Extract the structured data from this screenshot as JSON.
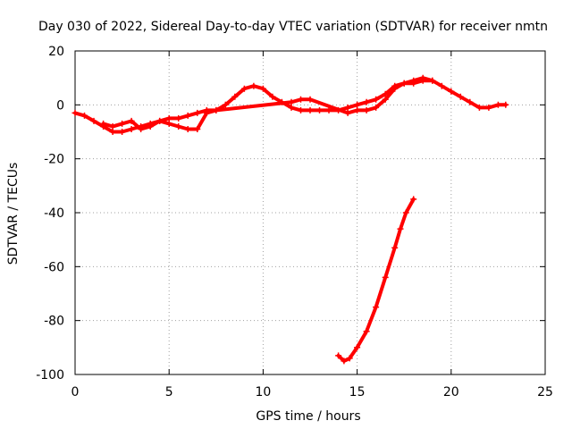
{
  "chart_data": {
    "type": "scatter",
    "title": "Day 030 of 2022, Sidereal Day-to-day VTEC variation (SDTVAR) for receiver nmtn",
    "xlabel": "GPS time / hours",
    "ylabel": "SDTVAR / TECUs",
    "xlim": [
      0,
      25
    ],
    "ylim": [
      -100,
      20
    ],
    "xticks": [
      0,
      5,
      10,
      15,
      20,
      25
    ],
    "yticks": [
      -100,
      -80,
      -60,
      -40,
      -20,
      0,
      20
    ],
    "xtick_labels": [
      "0",
      "5",
      "10",
      "15",
      "20",
      "25"
    ],
    "ytick_labels": [
      "-100",
      "-80",
      "-60",
      "-40",
      "-20",
      "0",
      "20"
    ],
    "grid": true,
    "marker": "plus",
    "color": "#ff0000",
    "series": [
      {
        "name": "main-track",
        "points": [
          [
            0.0,
            -3
          ],
          [
            0.5,
            -4
          ],
          [
            1.0,
            -6
          ],
          [
            1.5,
            -8
          ],
          [
            2.0,
            -10
          ],
          [
            2.5,
            -10
          ],
          [
            3.0,
            -9
          ],
          [
            3.5,
            -8
          ],
          [
            4.0,
            -7
          ],
          [
            4.5,
            -6
          ],
          [
            5.0,
            -5
          ],
          [
            5.5,
            -5
          ],
          [
            6.0,
            -4
          ],
          [
            6.5,
            -3
          ],
          [
            7.0,
            -2
          ],
          [
            7.5,
            -2
          ],
          [
            8.0,
            0
          ],
          [
            8.5,
            3
          ],
          [
            9.0,
            6
          ],
          [
            9.5,
            7
          ],
          [
            10.0,
            6
          ],
          [
            10.5,
            3
          ],
          [
            11.0,
            1
          ],
          [
            11.5,
            -1
          ],
          [
            12.0,
            -2
          ],
          [
            12.5,
            -2
          ],
          [
            13.0,
            -2
          ],
          [
            13.5,
            -2
          ],
          [
            14.0,
            -2
          ],
          [
            14.5,
            -1
          ],
          [
            15.0,
            0
          ],
          [
            15.5,
            1
          ],
          [
            16.0,
            2
          ],
          [
            16.5,
            4
          ],
          [
            17.0,
            7
          ],
          [
            17.5,
            8
          ],
          [
            18.0,
            8
          ],
          [
            18.5,
            9
          ],
          [
            19.0,
            9
          ],
          [
            19.5,
            7
          ],
          [
            20.0,
            5
          ],
          [
            20.5,
            3
          ],
          [
            21.0,
            1
          ],
          [
            21.5,
            -1
          ],
          [
            22.0,
            -1
          ],
          [
            22.5,
            0
          ],
          [
            22.9,
            0
          ]
        ]
      },
      {
        "name": "secondary-track",
        "points": [
          [
            1.5,
            -7
          ],
          [
            2.0,
            -8
          ],
          [
            2.5,
            -7
          ],
          [
            3.0,
            -6
          ],
          [
            3.5,
            -9
          ],
          [
            4.0,
            -8
          ],
          [
            4.5,
            -6
          ],
          [
            5.0,
            -7
          ],
          [
            5.5,
            -8
          ],
          [
            6.0,
            -9
          ],
          [
            6.5,
            -9
          ],
          [
            7.0,
            -3
          ],
          [
            7.5,
            -2
          ],
          [
            11.5,
            1
          ],
          [
            12.0,
            2
          ],
          [
            12.5,
            2
          ],
          [
            14.5,
            -3
          ],
          [
            15.0,
            -2
          ],
          [
            15.5,
            -2
          ],
          [
            16.0,
            -1
          ],
          [
            16.5,
            2
          ],
          [
            17.0,
            6
          ],
          [
            17.5,
            8
          ],
          [
            18.0,
            9
          ],
          [
            18.5,
            10
          ],
          [
            19.0,
            9
          ]
        ]
      },
      {
        "name": "descent-track",
        "points": [
          [
            14.0,
            -93
          ],
          [
            14.3,
            -95
          ],
          [
            14.6,
            -94
          ],
          [
            15.0,
            -90
          ],
          [
            15.5,
            -84
          ],
          [
            16.0,
            -75
          ],
          [
            16.5,
            -64
          ],
          [
            17.0,
            -53
          ],
          [
            17.3,
            -46
          ],
          [
            17.6,
            -40
          ],
          [
            18.0,
            -35
          ]
        ]
      }
    ]
  }
}
